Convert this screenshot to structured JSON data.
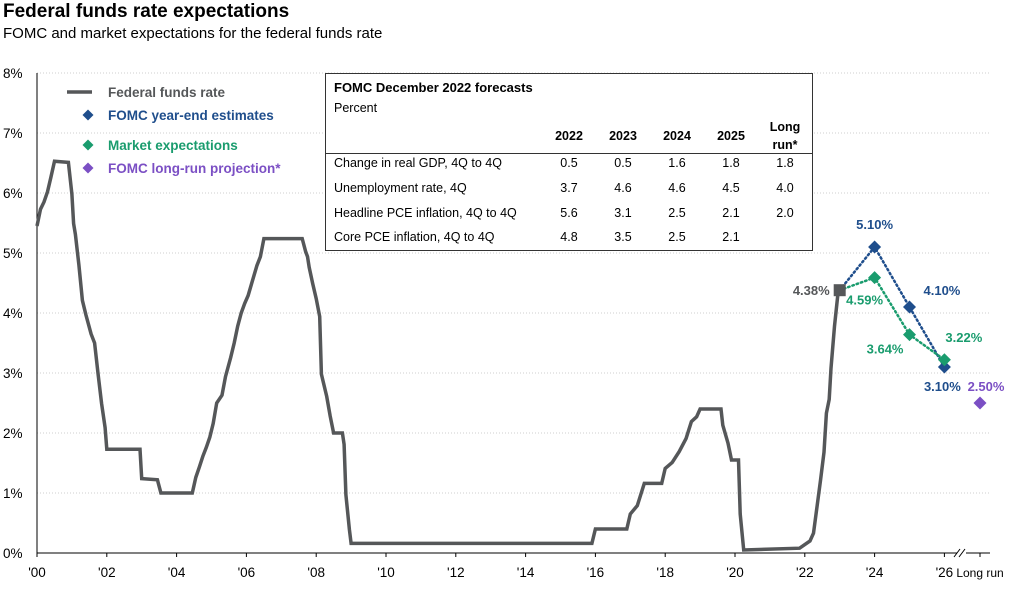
{
  "title": "Federal funds rate expectations",
  "subtitle": "FOMC and market expectations for the federal funds rate",
  "colors": {
    "fed_funds": "#555759",
    "fomc": "#1f4e8c",
    "market": "#1a9c6e",
    "longrun": "#7b4fc4"
  },
  "legend": [
    {
      "label": "Federal funds rate",
      "color": "#555759",
      "marker": "line"
    },
    {
      "label": "FOMC year-end estimates",
      "color": "#1f4e8c",
      "marker": "diamond"
    },
    {
      "label": "Market expectations",
      "color": "#1a9c6e",
      "marker": "diamond"
    },
    {
      "label": "FOMC long-run projection*",
      "color": "#7b4fc4",
      "marker": "diamond"
    }
  ],
  "chart_data": {
    "type": "line",
    "ylim": [
      0,
      8
    ],
    "y_ticks": [
      "0%",
      "1%",
      "2%",
      "3%",
      "4%",
      "5%",
      "6%",
      "7%",
      "8%"
    ],
    "x_ticks": [
      "'00",
      "'02",
      "'04",
      "'06",
      "'08",
      "'10",
      "'12",
      "'14",
      "'16",
      "'18",
      "'20",
      "'22",
      "'24",
      "'26",
      "Long run"
    ],
    "grid": true,
    "legend_position": "top-left",
    "series": [
      {
        "name": "Federal funds rate",
        "points": [
          [
            2000.0,
            5.45
          ],
          [
            2000.1,
            5.73
          ],
          [
            2000.2,
            5.85
          ],
          [
            2000.3,
            6.02
          ],
          [
            2000.4,
            6.27
          ],
          [
            2000.5,
            6.53
          ],
          [
            2000.9,
            6.51
          ],
          [
            2001.0,
            5.98
          ],
          [
            2001.05,
            5.49
          ],
          [
            2001.1,
            5.31
          ],
          [
            2001.2,
            4.8
          ],
          [
            2001.3,
            4.21
          ],
          [
            2001.4,
            3.97
          ],
          [
            2001.55,
            3.65
          ],
          [
            2001.65,
            3.5
          ],
          [
            2001.75,
            2.98
          ],
          [
            2001.85,
            2.49
          ],
          [
            2001.95,
            2.09
          ],
          [
            2002.0,
            1.73
          ],
          [
            2002.95,
            1.73
          ],
          [
            2003.0,
            1.24
          ],
          [
            2003.45,
            1.22
          ],
          [
            2003.55,
            1.0
          ],
          [
            2004.45,
            1.0
          ],
          [
            2004.55,
            1.26
          ],
          [
            2004.65,
            1.43
          ],
          [
            2004.75,
            1.61
          ],
          [
            2004.85,
            1.76
          ],
          [
            2004.95,
            1.93
          ],
          [
            2005.05,
            2.16
          ],
          [
            2005.15,
            2.5
          ],
          [
            2005.3,
            2.63
          ],
          [
            2005.4,
            2.94
          ],
          [
            2005.55,
            3.26
          ],
          [
            2005.65,
            3.5
          ],
          [
            2005.75,
            3.78
          ],
          [
            2005.85,
            4.0
          ],
          [
            2005.95,
            4.16
          ],
          [
            2006.05,
            4.29
          ],
          [
            2006.15,
            4.49
          ],
          [
            2006.3,
            4.79
          ],
          [
            2006.4,
            4.94
          ],
          [
            2006.5,
            5.24
          ],
          [
            2007.6,
            5.24
          ],
          [
            2007.7,
            5.02
          ],
          [
            2007.75,
            4.94
          ],
          [
            2007.8,
            4.76
          ],
          [
            2007.9,
            4.49
          ],
          [
            2008.0,
            4.24
          ],
          [
            2008.1,
            3.94
          ],
          [
            2008.15,
            2.98
          ],
          [
            2008.3,
            2.61
          ],
          [
            2008.4,
            2.28
          ],
          [
            2008.5,
            2.0
          ],
          [
            2008.75,
            2.0
          ],
          [
            2008.8,
            1.81
          ],
          [
            2008.85,
            0.97
          ],
          [
            2008.95,
            0.39
          ],
          [
            2009.0,
            0.16
          ],
          [
            2015.9,
            0.16
          ],
          [
            2016.0,
            0.4
          ],
          [
            2016.9,
            0.4
          ],
          [
            2017.0,
            0.65
          ],
          [
            2017.2,
            0.79
          ],
          [
            2017.4,
            1.16
          ],
          [
            2017.9,
            1.16
          ],
          [
            2018.0,
            1.41
          ],
          [
            2018.2,
            1.51
          ],
          [
            2018.4,
            1.69
          ],
          [
            2018.6,
            1.91
          ],
          [
            2018.75,
            2.19
          ],
          [
            2018.9,
            2.27
          ],
          [
            2019.0,
            2.4
          ],
          [
            2019.6,
            2.4
          ],
          [
            2019.65,
            2.13
          ],
          [
            2019.8,
            1.83
          ],
          [
            2019.9,
            1.55
          ],
          [
            2020.1,
            1.55
          ],
          [
            2020.15,
            0.65
          ],
          [
            2020.25,
            0.05
          ],
          [
            2021.85,
            0.08
          ],
          [
            2022.15,
            0.2
          ],
          [
            2022.25,
            0.33
          ],
          [
            2022.35,
            0.77
          ],
          [
            2022.45,
            1.21
          ],
          [
            2022.55,
            1.68
          ],
          [
            2022.62,
            2.33
          ],
          [
            2022.7,
            2.56
          ],
          [
            2022.75,
            3.08
          ],
          [
            2022.85,
            3.78
          ],
          [
            2022.95,
            4.33
          ],
          [
            2023.0,
            4.38
          ]
        ]
      },
      {
        "name": "FOMC year-end estimates",
        "points": [
          [
            2023.0,
            4.38
          ],
          [
            2024.0,
            5.1
          ],
          [
            2025.0,
            4.1
          ],
          [
            2026.0,
            3.1
          ]
        ],
        "labels": [
          "5.10%",
          "4.10%",
          "3.10%"
        ]
      },
      {
        "name": "Market expectations",
        "points": [
          [
            2023.0,
            4.38
          ],
          [
            2024.0,
            4.59
          ],
          [
            2025.0,
            3.64
          ],
          [
            2026.0,
            3.22
          ]
        ],
        "labels": [
          "4.59%",
          "3.64%",
          "3.22%"
        ]
      },
      {
        "name": "FOMC long-run projection*",
        "points": [
          [
            "Long run",
            2.5
          ]
        ],
        "labels": [
          "2.50%"
        ]
      }
    ],
    "annotations": [
      "4.38%"
    ]
  },
  "forecast_table": {
    "title": "FOMC December 2022 forecasts",
    "subtitle": "Percent",
    "columns": [
      "2022",
      "2023",
      "2024",
      "2025",
      "Long",
      "run*"
    ],
    "rows": [
      {
        "label": "Change in real GDP, 4Q to 4Q",
        "values": [
          "0.5",
          "0.5",
          "1.6",
          "1.8",
          "1.8"
        ]
      },
      {
        "label": "Unemployment rate, 4Q",
        "values": [
          "3.7",
          "4.6",
          "4.6",
          "4.5",
          "4.0"
        ]
      },
      {
        "label": "Headline PCE inflation, 4Q to 4Q",
        "values": [
          "5.6",
          "3.1",
          "2.5",
          "2.1",
          "2.0"
        ]
      },
      {
        "label": "Core PCE inflation, 4Q to 4Q",
        "values": [
          "4.8",
          "3.5",
          "2.5",
          "2.1",
          ""
        ]
      }
    ]
  }
}
